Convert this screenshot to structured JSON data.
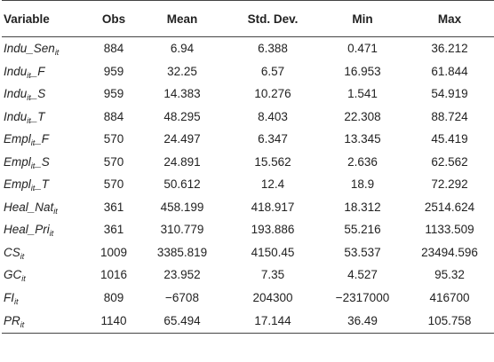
{
  "table": {
    "headers": [
      "Variable",
      "Obs",
      "Mean",
      "Std. Dev.",
      "Min",
      "Max"
    ],
    "rows": [
      {
        "var_main": "Indu_Sen",
        "var_sub": "it",
        "obs": "884",
        "mean": "6.94",
        "sd": "6.388",
        "min": "0.471",
        "max": "36.212"
      },
      {
        "var_main": "Indu",
        "var_sub": "it",
        "var_tail": "_F",
        "obs": "959",
        "mean": "32.25",
        "sd": "6.57",
        "min": "16.953",
        "max": "61.844"
      },
      {
        "var_main": "Indu",
        "var_sub": "it",
        "var_tail": "_S",
        "obs": "959",
        "mean": "14.383",
        "sd": "10.276",
        "min": "1.541",
        "max": "54.919"
      },
      {
        "var_main": "Indu",
        "var_sub": "it",
        "var_tail": "_T",
        "obs": "884",
        "mean": "48.295",
        "sd": "8.403",
        "min": "22.308",
        "max": "88.724"
      },
      {
        "var_main": "Empl",
        "var_sub": "it",
        "var_tail": "_F",
        "obs": "570",
        "mean": "24.497",
        "sd": "6.347",
        "min": "13.345",
        "max": "45.419"
      },
      {
        "var_main": "Empl",
        "var_sub": "it",
        "var_tail": "_S",
        "obs": "570",
        "mean": "24.891",
        "sd": "15.562",
        "min": "2.636",
        "max": "62.562"
      },
      {
        "var_main": "Empl",
        "var_sub": "it",
        "var_tail": "_T",
        "obs": "570",
        "mean": "50.612",
        "sd": "12.4",
        "min": "18.9",
        "max": "72.292"
      },
      {
        "var_main": "Heal_Nat",
        "var_sub": "it",
        "obs": "361",
        "mean": "458.199",
        "sd": "418.917",
        "min": "18.312",
        "max": "2514.624"
      },
      {
        "var_main": "Heal_Pri",
        "var_sub": "it",
        "obs": "361",
        "mean": "310.779",
        "sd": "193.886",
        "min": "55.216",
        "max": "1133.509"
      },
      {
        "var_main": "CS",
        "var_sub": "it",
        "obs": "1009",
        "mean": "3385.819",
        "sd": "4150.45",
        "min": "53.537",
        "max": "23494.596"
      },
      {
        "var_main": "GC",
        "var_sub": "it",
        "obs": "1016",
        "mean": "23.952",
        "sd": "7.35",
        "min": "4.527",
        "max": "95.32"
      },
      {
        "var_main": "FI",
        "var_sub": "it",
        "obs": "809",
        "mean": "−6708",
        "sd": "204300",
        "min": "−2317000",
        "max": "416700"
      },
      {
        "var_main": "PR",
        "var_sub": "it",
        "obs": "1140",
        "mean": "65.494",
        "sd": "17.144",
        "min": "36.49",
        "max": "105.758"
      }
    ]
  }
}
